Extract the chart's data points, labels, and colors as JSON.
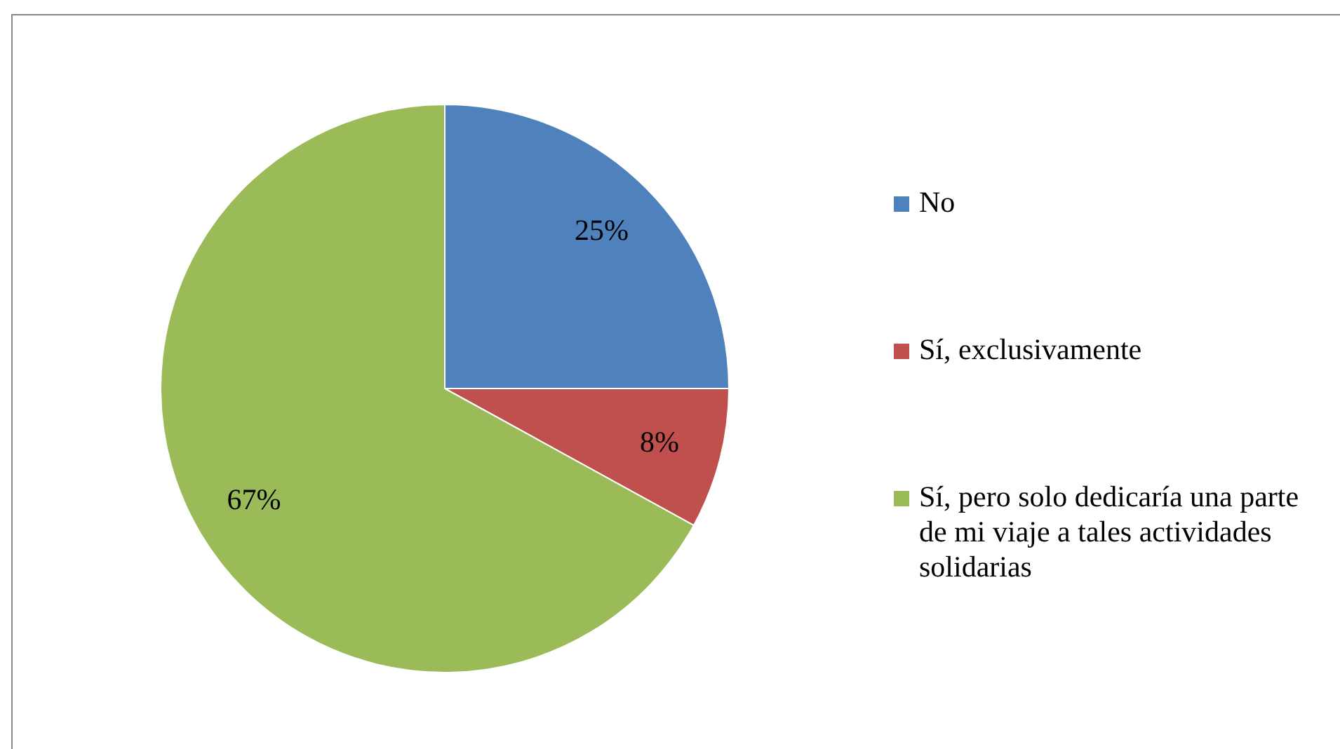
{
  "chart_data": {
    "type": "pie",
    "categories": [
      "No",
      "Sí, exclusivamente",
      "Sí, pero solo dedicaría una parte de mi viaje a tales actividades solidarias"
    ],
    "values": [
      25,
      8,
      67
    ],
    "colors": [
      "#4f81bd",
      "#c0504d",
      "#9bbb59"
    ],
    "value_labels": [
      "25%",
      "8%",
      "67%"
    ],
    "legend": "right"
  }
}
